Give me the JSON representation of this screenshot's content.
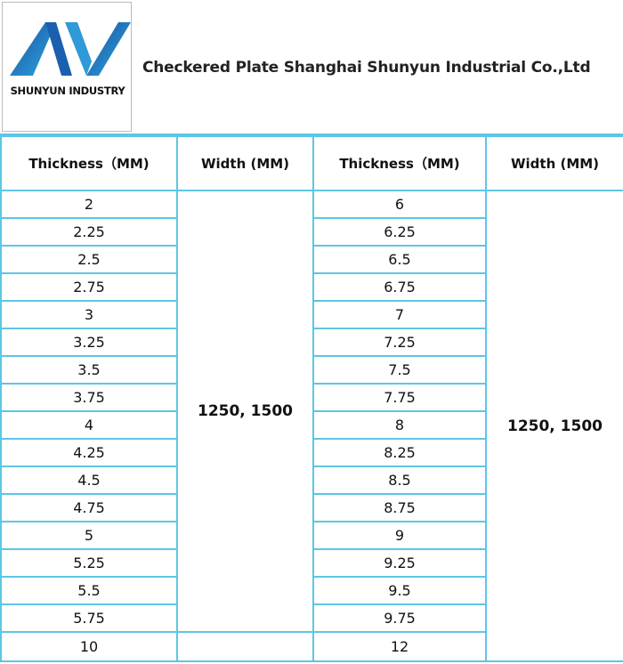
{
  "header": {
    "logo_text": "SHUNYUN INDUSTRY",
    "title": "Checkered Plate Shanghai Shunyun Industrial Co.,Ltd"
  },
  "table": {
    "headers": [
      "Thickness（MM)",
      "Width (MM)",
      "Thickness（MM)",
      "Width (MM)"
    ],
    "left_thickness": [
      2,
      2.25,
      2.5,
      2.75,
      3,
      3.25,
      3.5,
      3.75,
      4,
      4.25,
      4.5,
      4.75,
      5,
      5.25,
      5.5,
      5.75,
      10
    ],
    "left_width": "1250, 1500",
    "right_thickness": [
      6,
      6.25,
      6.5,
      6.75,
      7,
      7.25,
      7.5,
      7.75,
      8,
      8.25,
      8.5,
      8.75,
      9,
      9.25,
      9.5,
      9.75,
      12
    ],
    "right_width": "1250, 1500"
  }
}
